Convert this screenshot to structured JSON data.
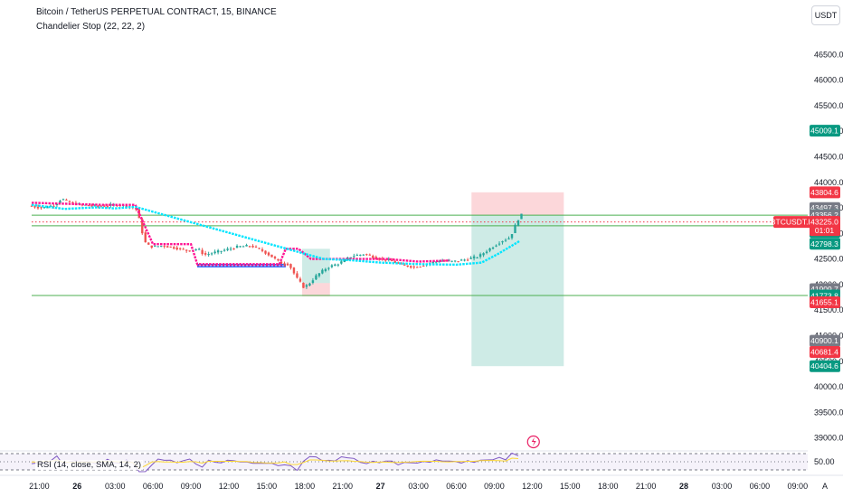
{
  "header": {
    "symbol_title": "Bitcoin / TetherUS PERPETUAL CONTRACT, 15, BINANCE",
    "indicator_label": "Chandelier Stop (22, 22, 2)",
    "currency_button": "USDT"
  },
  "rsi_panel": {
    "label": "RSI (14, close, SMA, 14, 2)",
    "tick_label": "50.00",
    "tick_value": 50
  },
  "chart_data": {
    "type": "line",
    "title": "Bitcoin / TetherUS PERPETUAL CONTRACT, 15, BINANCE",
    "ylim": [
      38800,
      47000
    ],
    "y_ticks": [
      39000,
      39500,
      40000,
      40500,
      41000,
      41500,
      42000,
      42500,
      43000,
      43500,
      44000,
      44500,
      45000,
      45500,
      46000,
      46500
    ],
    "y_tick_labels": [
      "39000.0",
      "39500.0",
      "40000.0",
      "40500.0",
      "41000.0",
      "41500.0",
      "42000.0",
      "42500.0",
      "43000.0",
      "43500.0",
      "44000.0",
      "44500.0",
      "45000.0",
      "45500.0",
      "46000.0",
      "46500.0"
    ],
    "x_range_hours": [
      -3.6,
      57.8
    ],
    "x_ticks": [
      {
        "hour": -3,
        "label": "21:00"
      },
      {
        "hour": 0,
        "label": "26"
      },
      {
        "hour": 3,
        "label": "03:00"
      },
      {
        "hour": 6,
        "label": "06:00"
      },
      {
        "hour": 9,
        "label": "09:00"
      },
      {
        "hour": 12,
        "label": "12:00"
      },
      {
        "hour": 15,
        "label": "15:00"
      },
      {
        "hour": 18,
        "label": "18:00"
      },
      {
        "hour": 21,
        "label": "21:00"
      },
      {
        "hour": 24,
        "label": "27"
      },
      {
        "hour": 27,
        "label": "03:00"
      },
      {
        "hour": 30,
        "label": "06:00"
      },
      {
        "hour": 33,
        "label": "09:00"
      },
      {
        "hour": 36,
        "label": "12:00"
      },
      {
        "hour": 39,
        "label": "15:00"
      },
      {
        "hour": 42,
        "label": "18:00"
      },
      {
        "hour": 45,
        "label": "21:00"
      },
      {
        "hour": 48,
        "label": "28"
      },
      {
        "hour": 51,
        "label": "03:00"
      },
      {
        "hour": 54,
        "label": "06:00"
      },
      {
        "hour": 57,
        "label": "09:00"
      }
    ],
    "price_path": [
      [
        -3.6,
        43540
      ],
      [
        -2.5,
        43500
      ],
      [
        -1.5,
        43560
      ],
      [
        -1.0,
        43680
      ],
      [
        -0.5,
        43620
      ],
      [
        0.5,
        43560
      ],
      [
        2.0,
        43530
      ],
      [
        3.5,
        43560
      ],
      [
        4.5,
        43520
      ],
      [
        5.0,
        43460
      ],
      [
        5.3,
        43100
      ],
      [
        5.7,
        42780
      ],
      [
        6.2,
        42740
      ],
      [
        7.0,
        42760
      ],
      [
        8.0,
        42720
      ],
      [
        9.0,
        42660
      ],
      [
        9.8,
        42700
      ],
      [
        10.3,
        42580
      ],
      [
        11.0,
        42620
      ],
      [
        12.0,
        42680
      ],
      [
        13.0,
        42740
      ],
      [
        14.0,
        42760
      ],
      [
        15.0,
        42650
      ],
      [
        15.8,
        42520
      ],
      [
        16.3,
        42420
      ],
      [
        17.0,
        42400
      ],
      [
        17.6,
        42130
      ],
      [
        18.2,
        41940
      ],
      [
        18.6,
        42020
      ],
      [
        19.2,
        42180
      ],
      [
        20.0,
        42330
      ],
      [
        21.0,
        42420
      ],
      [
        22.0,
        42560
      ],
      [
        23.0,
        42600
      ],
      [
        24.0,
        42510
      ],
      [
        25.0,
        42470
      ],
      [
        26.0,
        42380
      ],
      [
        27.0,
        42340
      ],
      [
        28.0,
        42410
      ],
      [
        29.0,
        42470
      ],
      [
        30.0,
        42450
      ],
      [
        31.0,
        42490
      ],
      [
        32.0,
        42550
      ],
      [
        33.0,
        42720
      ],
      [
        33.8,
        42850
      ],
      [
        34.5,
        42920
      ],
      [
        34.9,
        43150
      ],
      [
        35.3,
        43360
      ]
    ],
    "chandelier_long": [
      [
        -3.6,
        43560
      ],
      [
        -1.0,
        43480
      ],
      [
        1.5,
        43510
      ],
      [
        3.0,
        43490
      ],
      [
        4.6,
        43520
      ],
      [
        19.5,
        42500
      ],
      [
        21.5,
        42480
      ],
      [
        24.0,
        42430
      ],
      [
        27.0,
        42400
      ],
      [
        30.0,
        42390
      ],
      [
        32.0,
        42430
      ],
      [
        33.3,
        42600
      ],
      [
        35.0,
        42850
      ]
    ],
    "chandelier_short": [
      [
        -3.6,
        43600
      ],
      [
        2.0,
        43560
      ],
      [
        4.6,
        43560
      ],
      [
        6.0,
        42790
      ],
      [
        9.0,
        42790
      ],
      [
        9.5,
        42400
      ],
      [
        16.0,
        42400
      ],
      [
        16.5,
        42700
      ],
      [
        17.5,
        42700
      ],
      [
        18.5,
        42500
      ],
      [
        24.5,
        42500
      ],
      [
        27.0,
        42450
      ],
      [
        29.5,
        42470
      ]
    ],
    "horizontal_levels": [
      {
        "price": 43356.2,
        "color": "#4caf50",
        "style": "solid"
      },
      {
        "price": 43150.0,
        "color": "#4caf50",
        "style": "solid"
      },
      {
        "price": 41785.9,
        "color": "#4caf50",
        "style": "solid"
      },
      {
        "price": 43225.0,
        "color": "#f23645",
        "style": "dotted"
      }
    ],
    "support_band": {
      "x0": 9.5,
      "x1": 16.5,
      "prices": [
        42390,
        42370,
        42350
      ]
    },
    "positions": [
      {
        "x0": 17.8,
        "x1": 20.0,
        "entry": 42030,
        "target": 42700,
        "stop": 41770
      },
      {
        "x0": 31.2,
        "x1": 38.5,
        "entry": 43360,
        "target": 40404.6,
        "stop": 43804.6
      }
    ],
    "price_tags": [
      {
        "value": 45009.1,
        "label": "45009.1",
        "color": "#089981"
      },
      {
        "value": 43804.6,
        "label": "43804.6",
        "color": "#f23645"
      },
      {
        "value": 43497.3,
        "label": "43497.3",
        "color": "#787b86"
      },
      {
        "value": 43360.1,
        "label": "43360.1",
        "color": "#f23645"
      },
      {
        "value": 43359.1,
        "label": "43359.1",
        "color": "#089981"
      },
      {
        "value": 43356.2,
        "label": "43356.2",
        "color": "#787b86"
      },
      {
        "value": 43225.0,
        "label": "43225.0",
        "color": "#f23645"
      },
      {
        "value": 43029.3,
        "label": "43029.3",
        "color": "#089981"
      },
      {
        "value": 42798.3,
        "label": "42798.3",
        "color": "#089981"
      },
      {
        "value": 41909.7,
        "label": "41909.7",
        "color": "#787b86"
      },
      {
        "value": 41785.9,
        "label": "41785.9",
        "color": "#089981"
      },
      {
        "value": 41773.8,
        "label": "41773.8",
        "color": "#089981"
      },
      {
        "value": 41655.1,
        "label": "41655.1",
        "color": "#f23645"
      },
      {
        "value": 40900.1,
        "label": "40900.1",
        "color": "#787b86"
      },
      {
        "value": 40681.4,
        "label": "40681.4",
        "color": "#f23645"
      },
      {
        "value": 40404.6,
        "label": "40404.6",
        "color": "#089981"
      }
    ],
    "current_price_tag": {
      "symbol": "BTCUSDT.P",
      "price": "43225.0",
      "countdown": "01:01",
      "value": 43225.0
    },
    "colors": {
      "up": "#26a69a",
      "down": "#ef5350",
      "long_stop": "#00e5ff",
      "short_stop": "#ff1493",
      "profit": "#089981",
      "loss": "#f23645",
      "level": "#4caf50",
      "support": "#2962ff"
    }
  }
}
